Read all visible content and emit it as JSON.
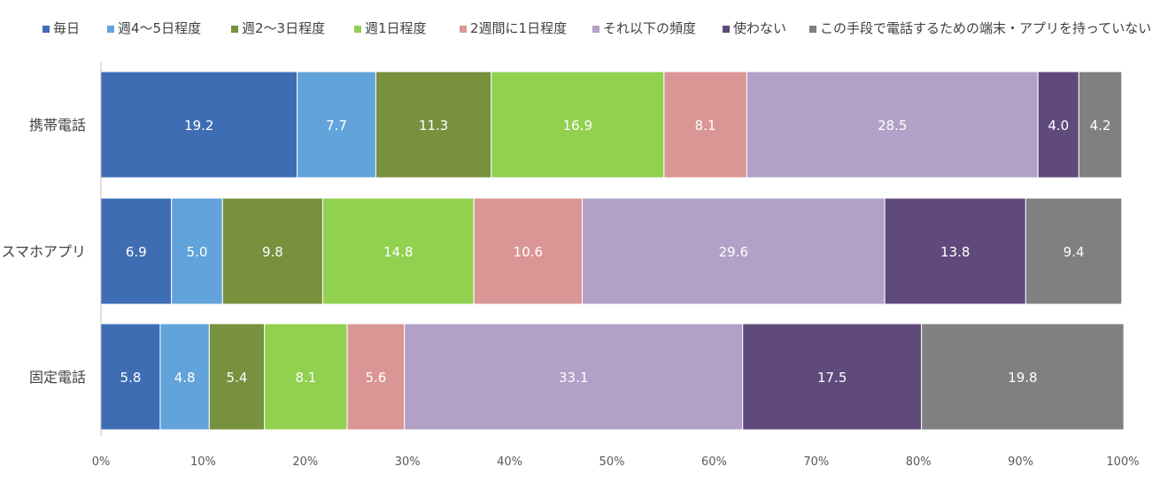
{
  "chart_data": {
    "type": "bar",
    "orientation": "horizontal",
    "stacked": "percent",
    "title": "",
    "xlabel": "",
    "ylabel": "",
    "xlim": [
      0,
      100
    ],
    "x_ticks": [
      "0%",
      "10%",
      "20%",
      "30%",
      "40%",
      "50%",
      "60%",
      "70%",
      "80%",
      "90%",
      "100%"
    ],
    "legend_position": "top",
    "grid": false,
    "categories": [
      "携帯電話",
      "スマホアプリ",
      "固定電話"
    ],
    "series": [
      {
        "name": "毎日",
        "color": "#3f6db4",
        "values": [
          19.2,
          6.9,
          5.8
        ],
        "labels": [
          "19.2",
          "6.9",
          "5.8"
        ]
      },
      {
        "name": "週4～5日程度",
        "color": "#62a3db",
        "values": [
          7.7,
          5.0,
          4.8
        ],
        "labels": [
          "7.7",
          "5.0",
          "4.8"
        ]
      },
      {
        "name": "週2～3日程度",
        "color": "#77913f",
        "values": [
          11.3,
          9.8,
          5.4
        ],
        "labels": [
          "11.3",
          "9.8",
          "5.4"
        ]
      },
      {
        "name": "週1日程度",
        "color": "#92d050",
        "values": [
          16.9,
          14.8,
          8.1
        ],
        "labels": [
          "16.9",
          "14.8",
          "8.1"
        ]
      },
      {
        "name": "2週間に1日程度",
        "color": "#da9694",
        "values": [
          8.1,
          10.6,
          5.6
        ],
        "labels": [
          "8.1",
          "10.6",
          "5.6"
        ]
      },
      {
        "name": "それ以下の頻度",
        "color": "#b1a0c7",
        "values": [
          28.5,
          29.6,
          33.1
        ],
        "labels": [
          "28.5",
          "29.6",
          "33.1"
        ]
      },
      {
        "name": "使わない",
        "color": "#604a7b",
        "values": [
          4.0,
          13.8,
          17.5
        ],
        "labels": [
          "4.0",
          "13.8",
          "17.5"
        ]
      },
      {
        "name": "この手段で電話するための端末・アプリを持っていない",
        "color": "#808080",
        "values": [
          4.2,
          9.4,
          19.8
        ],
        "labels": [
          "4.2",
          "9.4",
          "19.8"
        ]
      }
    ]
  }
}
